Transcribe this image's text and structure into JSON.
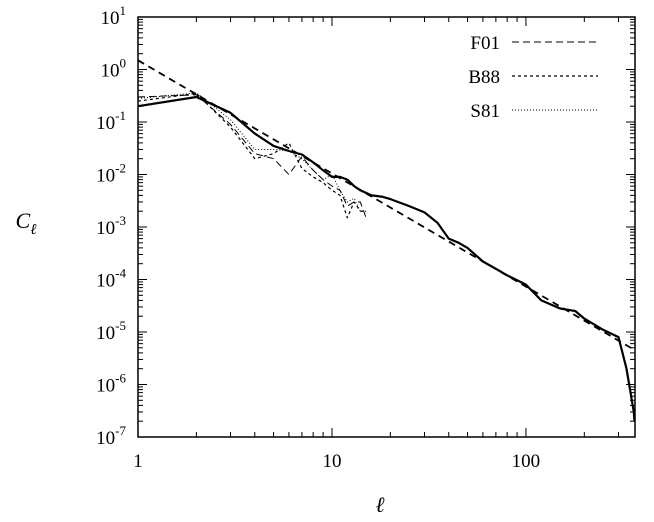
{
  "chart_data": {
    "type": "line",
    "title": "",
    "xlabel": "ℓ",
    "ylabel": "C",
    "ylabel_subscript": "ℓ",
    "x_scale": "log",
    "y_scale": "log",
    "xlim": [
      1,
      365
    ],
    "ylim": [
      1e-07,
      10
    ],
    "x_ticks": [
      1,
      10,
      100
    ],
    "x_tick_labels": [
      "1",
      "10",
      "100"
    ],
    "y_ticks": [
      {
        "value": 1e-07,
        "base": "10",
        "exp": "-7"
      },
      {
        "value": 1e-06,
        "base": "10",
        "exp": "-6"
      },
      {
        "value": 1e-05,
        "base": "10",
        "exp": "-5"
      },
      {
        "value": 0.0001,
        "base": "10",
        "exp": "-4"
      },
      {
        "value": 0.001,
        "base": "10",
        "exp": "-3"
      },
      {
        "value": 0.01,
        "base": "10",
        "exp": "-2"
      },
      {
        "value": 0.1,
        "base": "10",
        "exp": "-1"
      },
      {
        "value": 1,
        "base": "10",
        "exp": "0"
      },
      {
        "value": 10,
        "base": "10",
        "exp": "1"
      }
    ],
    "grid": false,
    "legend_position": "top-right",
    "series": [
      {
        "style": "solid-thick",
        "points": [
          [
            1,
            0.2
          ],
          [
            2,
            0.3
          ],
          [
            3,
            0.15
          ],
          [
            4,
            0.06
          ],
          [
            5,
            0.035
          ],
          [
            6,
            0.028
          ],
          [
            7,
            0.024
          ],
          [
            8,
            0.017
          ],
          [
            9,
            0.012
          ],
          [
            10,
            0.009
          ],
          [
            11,
            0.009
          ],
          [
            12,
            0.008
          ],
          [
            13,
            0.006
          ],
          [
            14,
            0.005
          ],
          [
            16,
            0.004
          ],
          [
            18,
            0.0038
          ],
          [
            20,
            0.0034
          ],
          [
            25,
            0.0025
          ],
          [
            30,
            0.0019
          ],
          [
            35,
            0.0012
          ],
          [
            40,
            0.0006
          ],
          [
            45,
            0.0005
          ],
          [
            50,
            0.0004
          ],
          [
            60,
            0.00022
          ],
          [
            70,
            0.00016
          ],
          [
            80,
            0.00012
          ],
          [
            100,
            8e-05
          ],
          [
            120,
            4e-05
          ],
          [
            150,
            2.8e-05
          ],
          [
            180,
            2.5e-05
          ],
          [
            200,
            1.8e-05
          ],
          [
            250,
            1.1e-05
          ],
          [
            300,
            8e-06
          ],
          [
            330,
            2e-06
          ],
          [
            360,
            3e-07
          ],
          [
            363,
            2e-07
          ]
        ]
      },
      {
        "name": "F01",
        "style": "dashed",
        "points": [
          [
            1,
            0.3
          ],
          [
            2,
            0.33
          ],
          [
            3,
            0.09
          ],
          [
            4,
            0.025
          ],
          [
            5,
            0.02
          ],
          [
            6,
            0.01
          ],
          [
            7,
            0.022
          ],
          [
            8,
            0.012
          ],
          [
            9,
            0.008
          ],
          [
            10,
            0.006
          ],
          [
            11,
            0.005
          ],
          [
            12,
            0.0025
          ],
          [
            13,
            0.003
          ],
          [
            14,
            0.003
          ],
          [
            15,
            0.0015
          ]
        ]
      },
      {
        "name": "B88",
        "style": "short-dashed",
        "points": [
          [
            1,
            0.25
          ],
          [
            2,
            0.35
          ],
          [
            3,
            0.08
          ],
          [
            4,
            0.02
          ],
          [
            5,
            0.025
          ],
          [
            6,
            0.04
          ],
          [
            7,
            0.013
          ],
          [
            8,
            0.009
          ],
          [
            9,
            0.007
          ],
          [
            10,
            0.005
          ],
          [
            11,
            0.004
          ],
          [
            12,
            0.0015
          ],
          [
            13,
            0.003
          ],
          [
            14,
            0.002
          ],
          [
            15,
            0.002
          ]
        ]
      },
      {
        "name": "S81",
        "style": "dotted",
        "points": [
          [
            1,
            0.28
          ],
          [
            2,
            0.36
          ],
          [
            3,
            0.11
          ],
          [
            4,
            0.03
          ],
          [
            5,
            0.03
          ],
          [
            6,
            0.028
          ],
          [
            7,
            0.02
          ],
          [
            8,
            0.012
          ],
          [
            9,
            0.008
          ],
          [
            10,
            0.01
          ],
          [
            11,
            0.005
          ],
          [
            12,
            0.003
          ],
          [
            13,
            0.0035
          ],
          [
            14,
            0.002
          ],
          [
            15,
            0.002
          ]
        ]
      },
      {
        "style": "fit-dashed",
        "points": [
          [
            1,
            1.5
          ],
          [
            365,
            4.5e-06
          ]
        ]
      }
    ]
  }
}
